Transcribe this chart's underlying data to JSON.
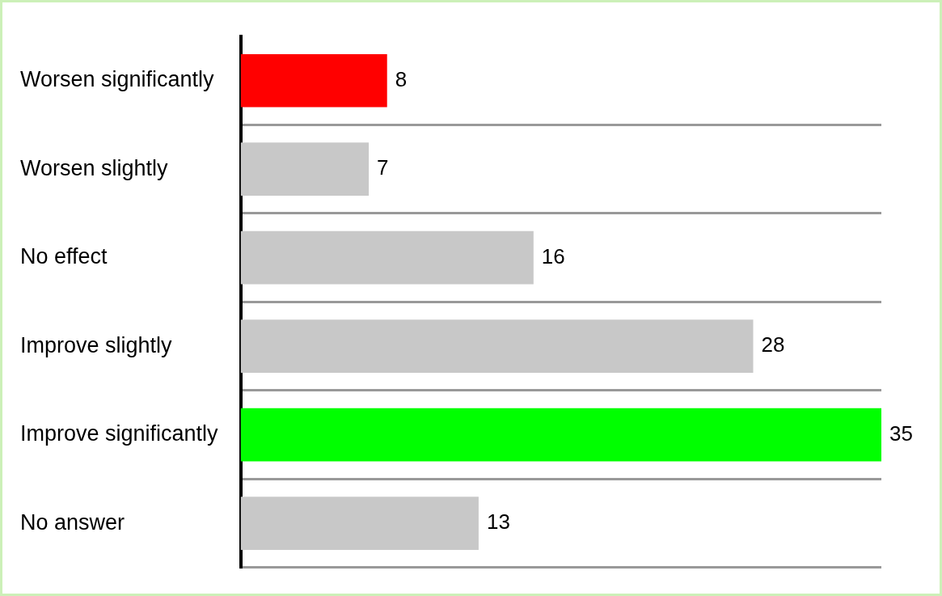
{
  "chart_data": {
    "type": "bar",
    "orientation": "horizontal",
    "categories": [
      "Worsen significantly",
      "Worsen slightly",
      "No effect",
      "Improve slightly",
      "Improve significantly",
      "No answer"
    ],
    "values": [
      8,
      7,
      16,
      28,
      35,
      13
    ],
    "colors": [
      "#ff0000",
      "#c8c8c8",
      "#c8c8c8",
      "#c8c8c8",
      "#00ff00",
      "#c8c8c8"
    ],
    "data_labels": true,
    "grid": "y",
    "tick_labels": "y",
    "legend": false
  }
}
